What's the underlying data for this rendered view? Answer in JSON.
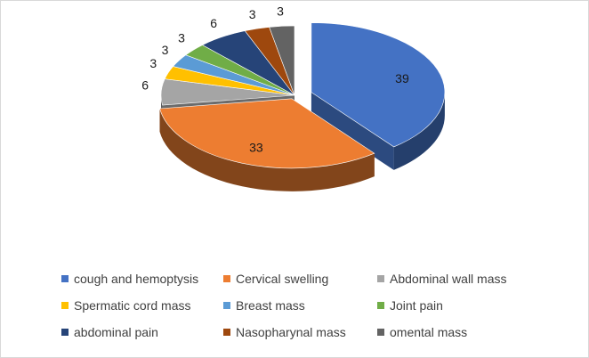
{
  "chart_data": {
    "type": "pie",
    "style": "3d-exploded",
    "categories": [
      "cough and hemoptysis",
      "Cervical swelling",
      "Abdominal wall mass",
      "Spermatic cord mass",
      "Breast mass",
      "Joint pain",
      "abdominal pain",
      "Nasopharynal mass",
      "omental mass"
    ],
    "values": [
      39,
      33,
      6,
      3,
      3,
      3,
      6,
      3,
      3
    ],
    "colors": [
      "#4472c4",
      "#ed7d31",
      "#a5a5a5",
      "#ffc000",
      "#5b9bd5",
      "#70ad47",
      "#264478",
      "#9e480e",
      "#636363"
    ],
    "legend_position": "bottom"
  }
}
